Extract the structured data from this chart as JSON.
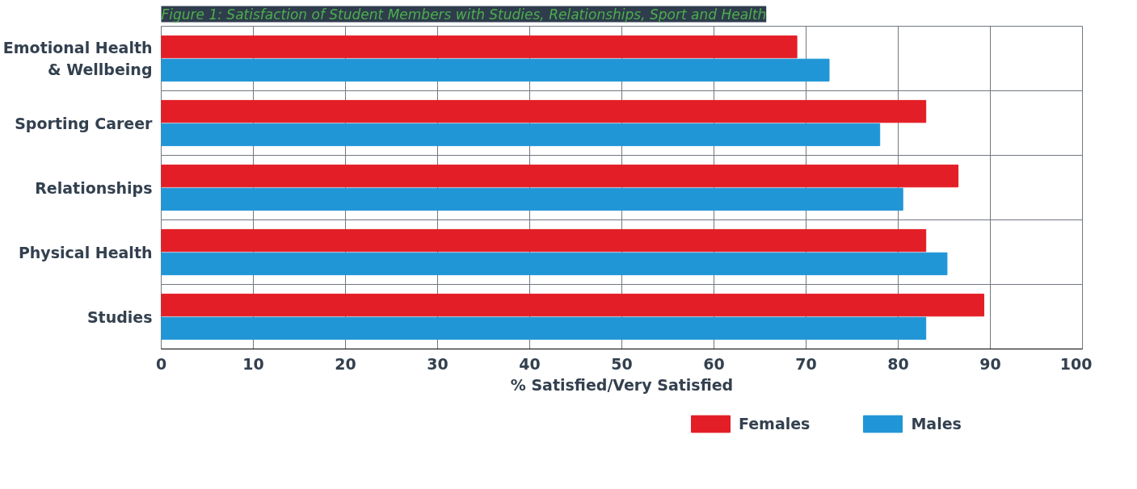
{
  "chart_data": {
    "type": "bar",
    "orientation": "horizontal",
    "title": "Figure 1: Satisfaction of Student Members with Studies, Relationships, Sport and Health",
    "xlabel": "% Satisfied/Very Satisfied",
    "categories": [
      "Emotional Health\n& Wellbeing",
      "Sporting Career",
      "Relationships",
      "Physical Health",
      "Studies"
    ],
    "series": [
      {
        "name": "Females",
        "color": "#e31e26",
        "values": [
          69,
          83,
          86.5,
          83,
          89.3
        ]
      },
      {
        "name": "Males",
        "color": "#2196d6",
        "values": [
          72.5,
          78,
          80.5,
          85.3,
          83
        ]
      }
    ],
    "xlim": [
      0,
      100
    ],
    "xticks": [
      0,
      10,
      20,
      30,
      40,
      50,
      60,
      70,
      80,
      90,
      100
    ],
    "grid": true,
    "legend": "bottom"
  }
}
